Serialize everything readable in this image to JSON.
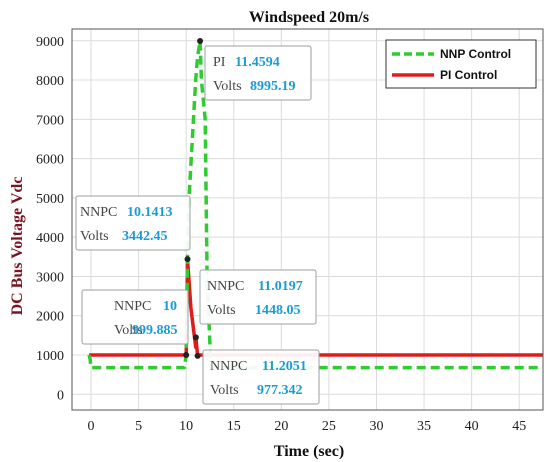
{
  "chart_data": {
    "type": "line",
    "title": "Windspeed 20m/s",
    "xlabel": "Time (sec)",
    "ylabel": "DC Bus Voltage Vdc",
    "xlim": [
      -2,
      47.5
    ],
    "ylim": [
      -400,
      9300
    ],
    "xticks": [
      "0",
      "5",
      "10",
      "15",
      "20",
      "25",
      "30",
      "35",
      "40",
      "45"
    ],
    "yticks": [
      "0",
      "1000",
      "2000",
      "3000",
      "4000",
      "5000",
      "6000",
      "7000",
      "8000",
      "9000"
    ],
    "grid": true,
    "legend_position": "top-right",
    "series": [
      {
        "name": "NNP Control",
        "color": "#2ecc2e",
        "style": "dashed",
        "x": [
          -0.2,
          -0.1,
          0.0,
          9.8,
          10.0,
          10.14,
          10.3,
          11.0,
          11.2,
          11.46,
          11.6,
          12.0,
          12.2,
          12.6,
          47.5
        ],
        "y": [
          1000,
          900,
          680,
          680,
          1000,
          3442,
          5000,
          8000,
          8600,
          8995,
          8000,
          7000,
          3000,
          680,
          680
        ]
      },
      {
        "name": "PI Control",
        "color": "#e01b1b",
        "style": "solid",
        "x": [
          -0.2,
          0.0,
          0.1,
          9.9,
          10.0,
          10.14,
          10.5,
          11.0,
          11.02,
          11.2,
          11.4,
          47.5
        ],
        "y": [
          1000,
          1000,
          1000,
          1000,
          1000,
          3442,
          2200,
          1200,
          1448,
          977,
          1000,
          1000
        ]
      }
    ],
    "annotations": [
      {
        "lines": [
          {
            "label": "PI",
            "value": "11.4594"
          },
          {
            "label": "Volts",
            "value": "8995.19"
          }
        ],
        "point": [
          11.46,
          8995
        ]
      },
      {
        "lines": [
          {
            "label": "NNPC",
            "value": "10.1413"
          },
          {
            "label": "Volts",
            "value": "3442.45"
          }
        ],
        "point": [
          10.14,
          3442
        ]
      },
      {
        "lines": [
          {
            "label": "NNPC",
            "value": "10"
          },
          {
            "label": "Volts",
            "value": "999.885"
          }
        ],
        "point": [
          10.0,
          1000
        ]
      },
      {
        "lines": [
          {
            "label": "NNPC",
            "value": "11.0197"
          },
          {
            "label": "Volts",
            "value": "1448.05"
          }
        ],
        "point": [
          11.02,
          1448
        ]
      },
      {
        "lines": [
          {
            "label": "NNPC",
            "value": "11.2051"
          },
          {
            "label": "Volts",
            "value": "977.342"
          }
        ],
        "point": [
          11.2,
          977
        ]
      }
    ]
  }
}
